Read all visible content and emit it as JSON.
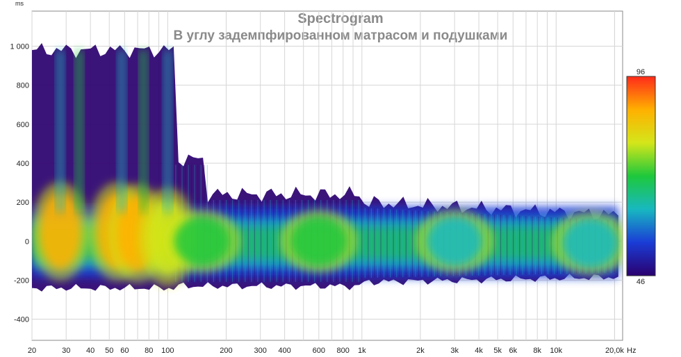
{
  "chart_data": {
    "type": "heatmap",
    "title": "Spectrogram",
    "subtitle": "В углу задемпфированном матрасом и подушками",
    "y_unit": "ms",
    "x_unit": "Hz",
    "x_scale": "log",
    "xlim": [
      20,
      22000
    ],
    "ylim": [
      -500,
      1000
    ],
    "x_ticks": [
      {
        "value": 20,
        "label": "20"
      },
      {
        "value": 30,
        "label": "30"
      },
      {
        "value": 40,
        "label": "40"
      },
      {
        "value": 50,
        "label": "50"
      },
      {
        "value": 60,
        "label": "60"
      },
      {
        "value": 80,
        "label": "80"
      },
      {
        "value": 100,
        "label": "100"
      },
      {
        "value": 200,
        "label": "200"
      },
      {
        "value": 300,
        "label": "300"
      },
      {
        "value": 400,
        "label": "400"
      },
      {
        "value": 600,
        "label": "600"
      },
      {
        "value": 800,
        "label": "800"
      },
      {
        "value": 1000,
        "label": "1k"
      },
      {
        "value": 2000,
        "label": "2k"
      },
      {
        "value": 3000,
        "label": "3k"
      },
      {
        "value": 4000,
        "label": "4k"
      },
      {
        "value": 5000,
        "label": "5k"
      },
      {
        "value": 6000,
        "label": "6k"
      },
      {
        "value": 8000,
        "label": "8k"
      },
      {
        "value": 10000,
        "label": "10k"
      },
      {
        "value": 20000,
        "label": "20,0k"
      }
    ],
    "y_ticks": [
      {
        "value": 1000,
        "label": "1 000"
      },
      {
        "value": 800,
        "label": "800"
      },
      {
        "value": 600,
        "label": "600"
      },
      {
        "value": 400,
        "label": "400"
      },
      {
        "value": 200,
        "label": "200"
      },
      {
        "value": 0,
        "label": "0"
      },
      {
        "value": -200,
        "label": "-200"
      },
      {
        "value": -400,
        "label": "-400"
      }
    ],
    "colorbar": {
      "max_label": "96",
      "min_label": "46",
      "range": [
        46,
        96
      ],
      "colors": [
        "#2a006e",
        "#1a3cd6",
        "#18b8c0",
        "#1ec83c",
        "#d4e61a",
        "#ffb000",
        "#ff2a1a"
      ]
    },
    "grid": true,
    "regions": [
      {
        "freq_hz": 28,
        "time_ms": 50,
        "level": 90
      },
      {
        "freq_hz": 55,
        "time_ms": 50,
        "level": 88
      },
      {
        "freq_hz": 70,
        "time_ms": 40,
        "level": 86
      },
      {
        "freq_hz": 100,
        "time_ms": 20,
        "level": 80
      },
      {
        "freq_hz": 150,
        "time_ms": 0,
        "level": 68
      },
      {
        "freq_hz": 600,
        "time_ms": 0,
        "level": 68
      },
      {
        "freq_hz": 3000,
        "time_ms": 0,
        "level": 66
      },
      {
        "freq_hz": 15000,
        "time_ms": -10,
        "level": 60
      }
    ]
  }
}
